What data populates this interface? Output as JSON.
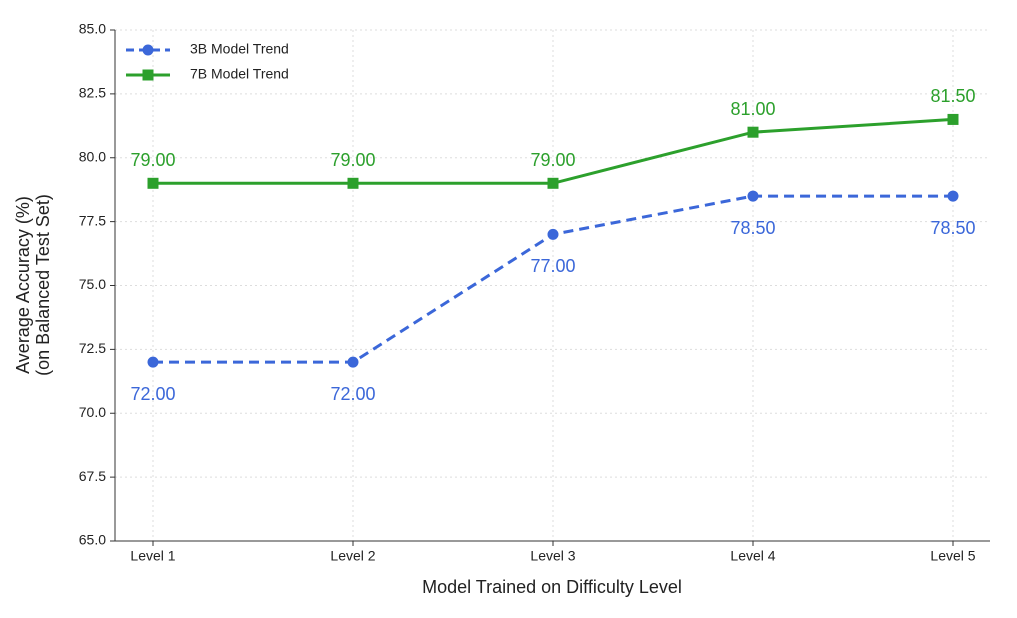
{
  "chart_data": {
    "type": "line",
    "xlabel": "Model Trained on Difficulty Level",
    "ylabel": [
      "Average Accuracy (%)",
      "(on Balanced Test Set)"
    ],
    "categories": [
      "Level 1",
      "Level 2",
      "Level 3",
      "Level 4",
      "Level 5"
    ],
    "series": [
      {
        "name": "3B Model Trend",
        "color": "#3b67d9",
        "dashed": true,
        "marker": "circle",
        "label_position": "below",
        "values": [
          72,
          72,
          77,
          78.5,
          78.5
        ],
        "value_labels": [
          "72.00",
          "72.00",
          "77.00",
          "78.50",
          "78.50"
        ]
      },
      {
        "name": "7B Model Trend",
        "color": "#2ca02c",
        "dashed": false,
        "marker": "square",
        "label_position": "above",
        "values": [
          79,
          79,
          79,
          81,
          81.5
        ],
        "value_labels": [
          "79.00",
          "79.00",
          "79.00",
          "81.00",
          "81.50"
        ]
      }
    ],
    "ylim": [
      65,
      85
    ],
    "yticks": [
      {
        "value": 65,
        "label": "65.0"
      },
      {
        "value": 67.5,
        "label": "67.5"
      },
      {
        "value": 70,
        "label": "70.0"
      },
      {
        "value": 72.5,
        "label": "72.5"
      },
      {
        "value": 75,
        "label": "75.0"
      },
      {
        "value": 77.5,
        "label": "77.5"
      },
      {
        "value": 80,
        "label": "80.0"
      },
      {
        "value": 82.5,
        "label": "82.5"
      },
      {
        "value": 85,
        "label": "85.0"
      }
    ],
    "grid": true,
    "legend": "upper left"
  }
}
